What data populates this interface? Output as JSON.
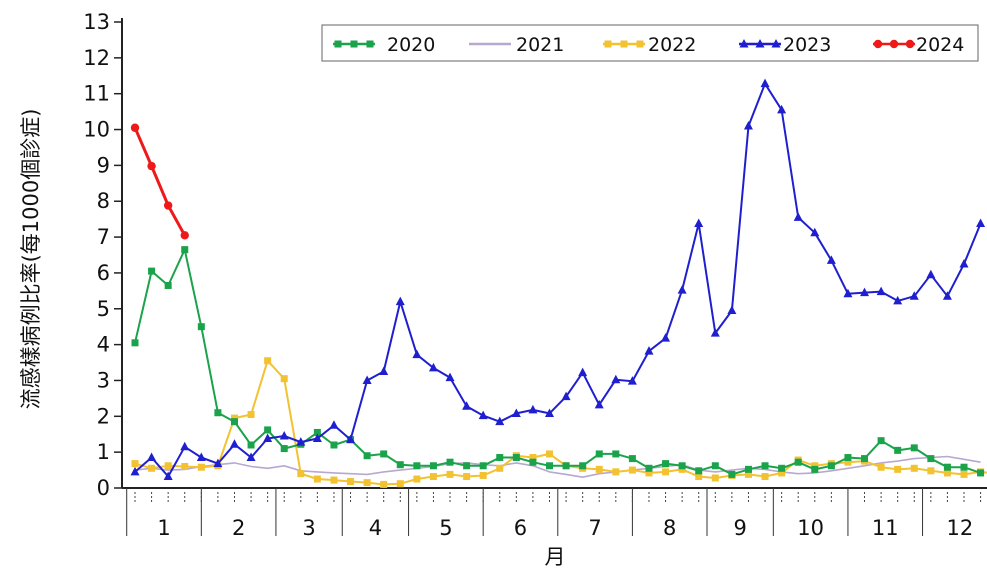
{
  "chart_data": {
    "type": "line",
    "title": "",
    "xlabel": "月",
    "ylabel": "流感樣病例比率(每1000個診症)",
    "ylim": [
      0,
      13
    ],
    "yticks": [
      0,
      1,
      2,
      3,
      4,
      5,
      6,
      7,
      8,
      9,
      10,
      11,
      12,
      13
    ],
    "xlim": [
      1,
      53
    ],
    "x_unit": "week",
    "month_labels": [
      "1",
      "2",
      "3",
      "4",
      "5",
      "6",
      "7",
      "8",
      "9",
      "10",
      "11",
      "12"
    ],
    "month_boundaries": [
      0.5,
      5,
      9.5,
      13.5,
      17.5,
      22,
      26.5,
      31,
      35.5,
      39.5,
      44,
      48.5,
      53
    ],
    "grid": false,
    "legend_position": "top",
    "series": [
      {
        "name": "2020",
        "color": "#1aa34a",
        "marker": "square",
        "x": [
          1,
          2,
          3,
          4,
          5,
          6,
          7,
          8,
          9,
          10,
          11,
          12,
          13,
          14,
          15,
          16,
          17,
          18,
          19,
          20,
          21,
          22,
          23,
          24,
          25,
          26,
          27,
          28,
          29,
          30,
          31,
          32,
          33,
          34,
          35,
          36,
          37,
          38,
          39,
          40,
          41,
          42,
          43,
          44,
          45,
          46,
          47,
          48,
          49,
          50,
          51,
          52
        ],
        "values": [
          4.05,
          6.05,
          5.65,
          6.65,
          4.5,
          2.1,
          1.85,
          1.2,
          1.62,
          1.1,
          1.22,
          1.55,
          1.2,
          1.35,
          0.9,
          0.95,
          0.65,
          0.62,
          0.62,
          0.72,
          0.62,
          0.62,
          0.85,
          0.85,
          0.72,
          0.62,
          0.62,
          0.62,
          0.95,
          0.95,
          0.82,
          0.55,
          0.68,
          0.62,
          0.48,
          0.62,
          0.38,
          0.52,
          0.62,
          0.55,
          0.72,
          0.52,
          0.62,
          0.85,
          0.82,
          1.32,
          1.05,
          1.12,
          0.82,
          0.58,
          0.58,
          0.42
        ]
      },
      {
        "name": "2021",
        "color": "#b8a8d0",
        "marker": "none",
        "x": [
          1,
          2,
          3,
          4,
          5,
          6,
          7,
          8,
          9,
          10,
          11,
          12,
          13,
          14,
          15,
          16,
          17,
          18,
          19,
          20,
          21,
          22,
          23,
          24,
          25,
          26,
          27,
          28,
          29,
          30,
          31,
          32,
          33,
          34,
          35,
          36,
          37,
          38,
          39,
          40,
          41,
          42,
          43,
          44,
          45,
          46,
          47,
          48,
          49,
          50,
          51,
          52
        ],
        "values": [
          0.5,
          0.55,
          0.5,
          0.52,
          0.6,
          0.65,
          0.7,
          0.6,
          0.55,
          0.62,
          0.48,
          0.45,
          0.42,
          0.4,
          0.38,
          0.45,
          0.5,
          0.55,
          0.6,
          0.68,
          0.7,
          0.65,
          0.62,
          0.7,
          0.62,
          0.45,
          0.38,
          0.3,
          0.4,
          0.45,
          0.5,
          0.55,
          0.6,
          0.65,
          0.5,
          0.45,
          0.5,
          0.55,
          0.52,
          0.45,
          0.4,
          0.42,
          0.48,
          0.55,
          0.62,
          0.7,
          0.75,
          0.82,
          0.85,
          0.88,
          0.8,
          0.72
        ]
      },
      {
        "name": "2022",
        "color": "#f2c230",
        "marker": "square",
        "x": [
          1,
          2,
          3,
          4,
          5,
          6,
          7,
          8,
          9,
          10,
          11,
          12,
          13,
          14,
          15,
          16,
          17,
          18,
          19,
          20,
          21,
          22,
          23,
          24,
          25,
          26,
          27,
          28,
          29,
          30,
          31,
          32,
          33,
          34,
          35,
          36,
          37,
          38,
          39,
          40,
          41,
          42,
          43,
          44,
          45,
          46,
          47,
          48,
          49,
          50,
          51,
          52,
          53
        ],
        "values": [
          0.68,
          0.55,
          0.62,
          0.6,
          0.58,
          0.62,
          1.95,
          2.05,
          3.55,
          3.05,
          0.4,
          0.25,
          0.22,
          0.18,
          0.15,
          0.1,
          0.12,
          0.25,
          0.32,
          0.38,
          0.32,
          0.35,
          0.55,
          0.9,
          0.85,
          0.95,
          0.62,
          0.55,
          0.52,
          0.45,
          0.5,
          0.42,
          0.45,
          0.52,
          0.32,
          0.28,
          0.35,
          0.38,
          0.32,
          0.42,
          0.78,
          0.62,
          0.68,
          0.72,
          0.75,
          0.58,
          0.52,
          0.55,
          0.48,
          0.42,
          0.38,
          0.45,
          0.4
        ]
      },
      {
        "name": "2023",
        "color": "#1f1fd0",
        "marker": "triangle",
        "x": [
          1,
          2,
          3,
          4,
          5,
          6,
          7,
          8,
          9,
          10,
          11,
          12,
          13,
          14,
          15,
          16,
          17,
          18,
          19,
          20,
          21,
          22,
          23,
          24,
          25,
          26,
          27,
          28,
          29,
          30,
          31,
          32,
          33,
          34,
          35,
          36,
          37,
          38,
          39,
          40,
          41,
          42,
          43,
          44,
          45,
          46,
          47,
          48,
          49,
          50,
          51,
          52
        ],
        "values": [
          0.45,
          0.85,
          0.32,
          1.15,
          0.85,
          0.68,
          1.22,
          0.85,
          1.38,
          1.45,
          1.28,
          1.38,
          1.75,
          1.35,
          3.0,
          3.25,
          5.2,
          3.72,
          3.35,
          3.08,
          2.28,
          2.02,
          1.85,
          2.08,
          2.18,
          2.08,
          2.55,
          3.22,
          2.32,
          3.02,
          2.98,
          3.82,
          4.18,
          5.52,
          7.38,
          4.32,
          4.95,
          10.1,
          11.28,
          10.55,
          7.55,
          7.12,
          6.35,
          5.42,
          5.45,
          5.48,
          5.22,
          5.35,
          5.95,
          5.35,
          6.25,
          7.38
        ]
      },
      {
        "name": "2024",
        "color": "#ee1a1a",
        "marker": "circle",
        "x": [
          1,
          2,
          3,
          4
        ],
        "values": [
          10.05,
          8.98,
          7.88,
          7.05
        ]
      }
    ]
  }
}
